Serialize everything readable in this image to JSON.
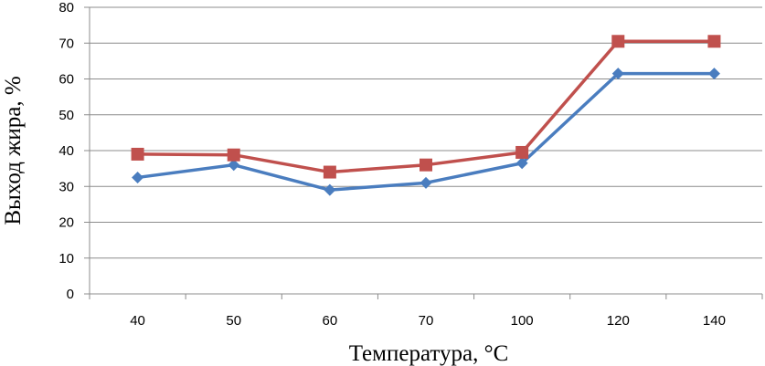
{
  "chart_data": {
    "type": "line",
    "categories": [
      "40",
      "50",
      "60",
      "70",
      "100",
      "120",
      "140"
    ],
    "series": [
      {
        "values": [
          32.5,
          36.0,
          29.0,
          31.0,
          36.5,
          61.5,
          61.5
        ],
        "color": "#4a7dbf",
        "marker": "diamond"
      },
      {
        "values": [
          39.0,
          38.8,
          34.0,
          36.0,
          39.5,
          70.5,
          70.5
        ],
        "color": "#c0504d",
        "marker": "square"
      }
    ],
    "xlabel": "Температура,  °С",
    "ylabel": "Выход жира, %",
    "ylim": [
      0,
      80
    ],
    "yticks": [
      0,
      10,
      20,
      30,
      40,
      50,
      60,
      70,
      80
    ],
    "grid": true,
    "legend": "none"
  }
}
